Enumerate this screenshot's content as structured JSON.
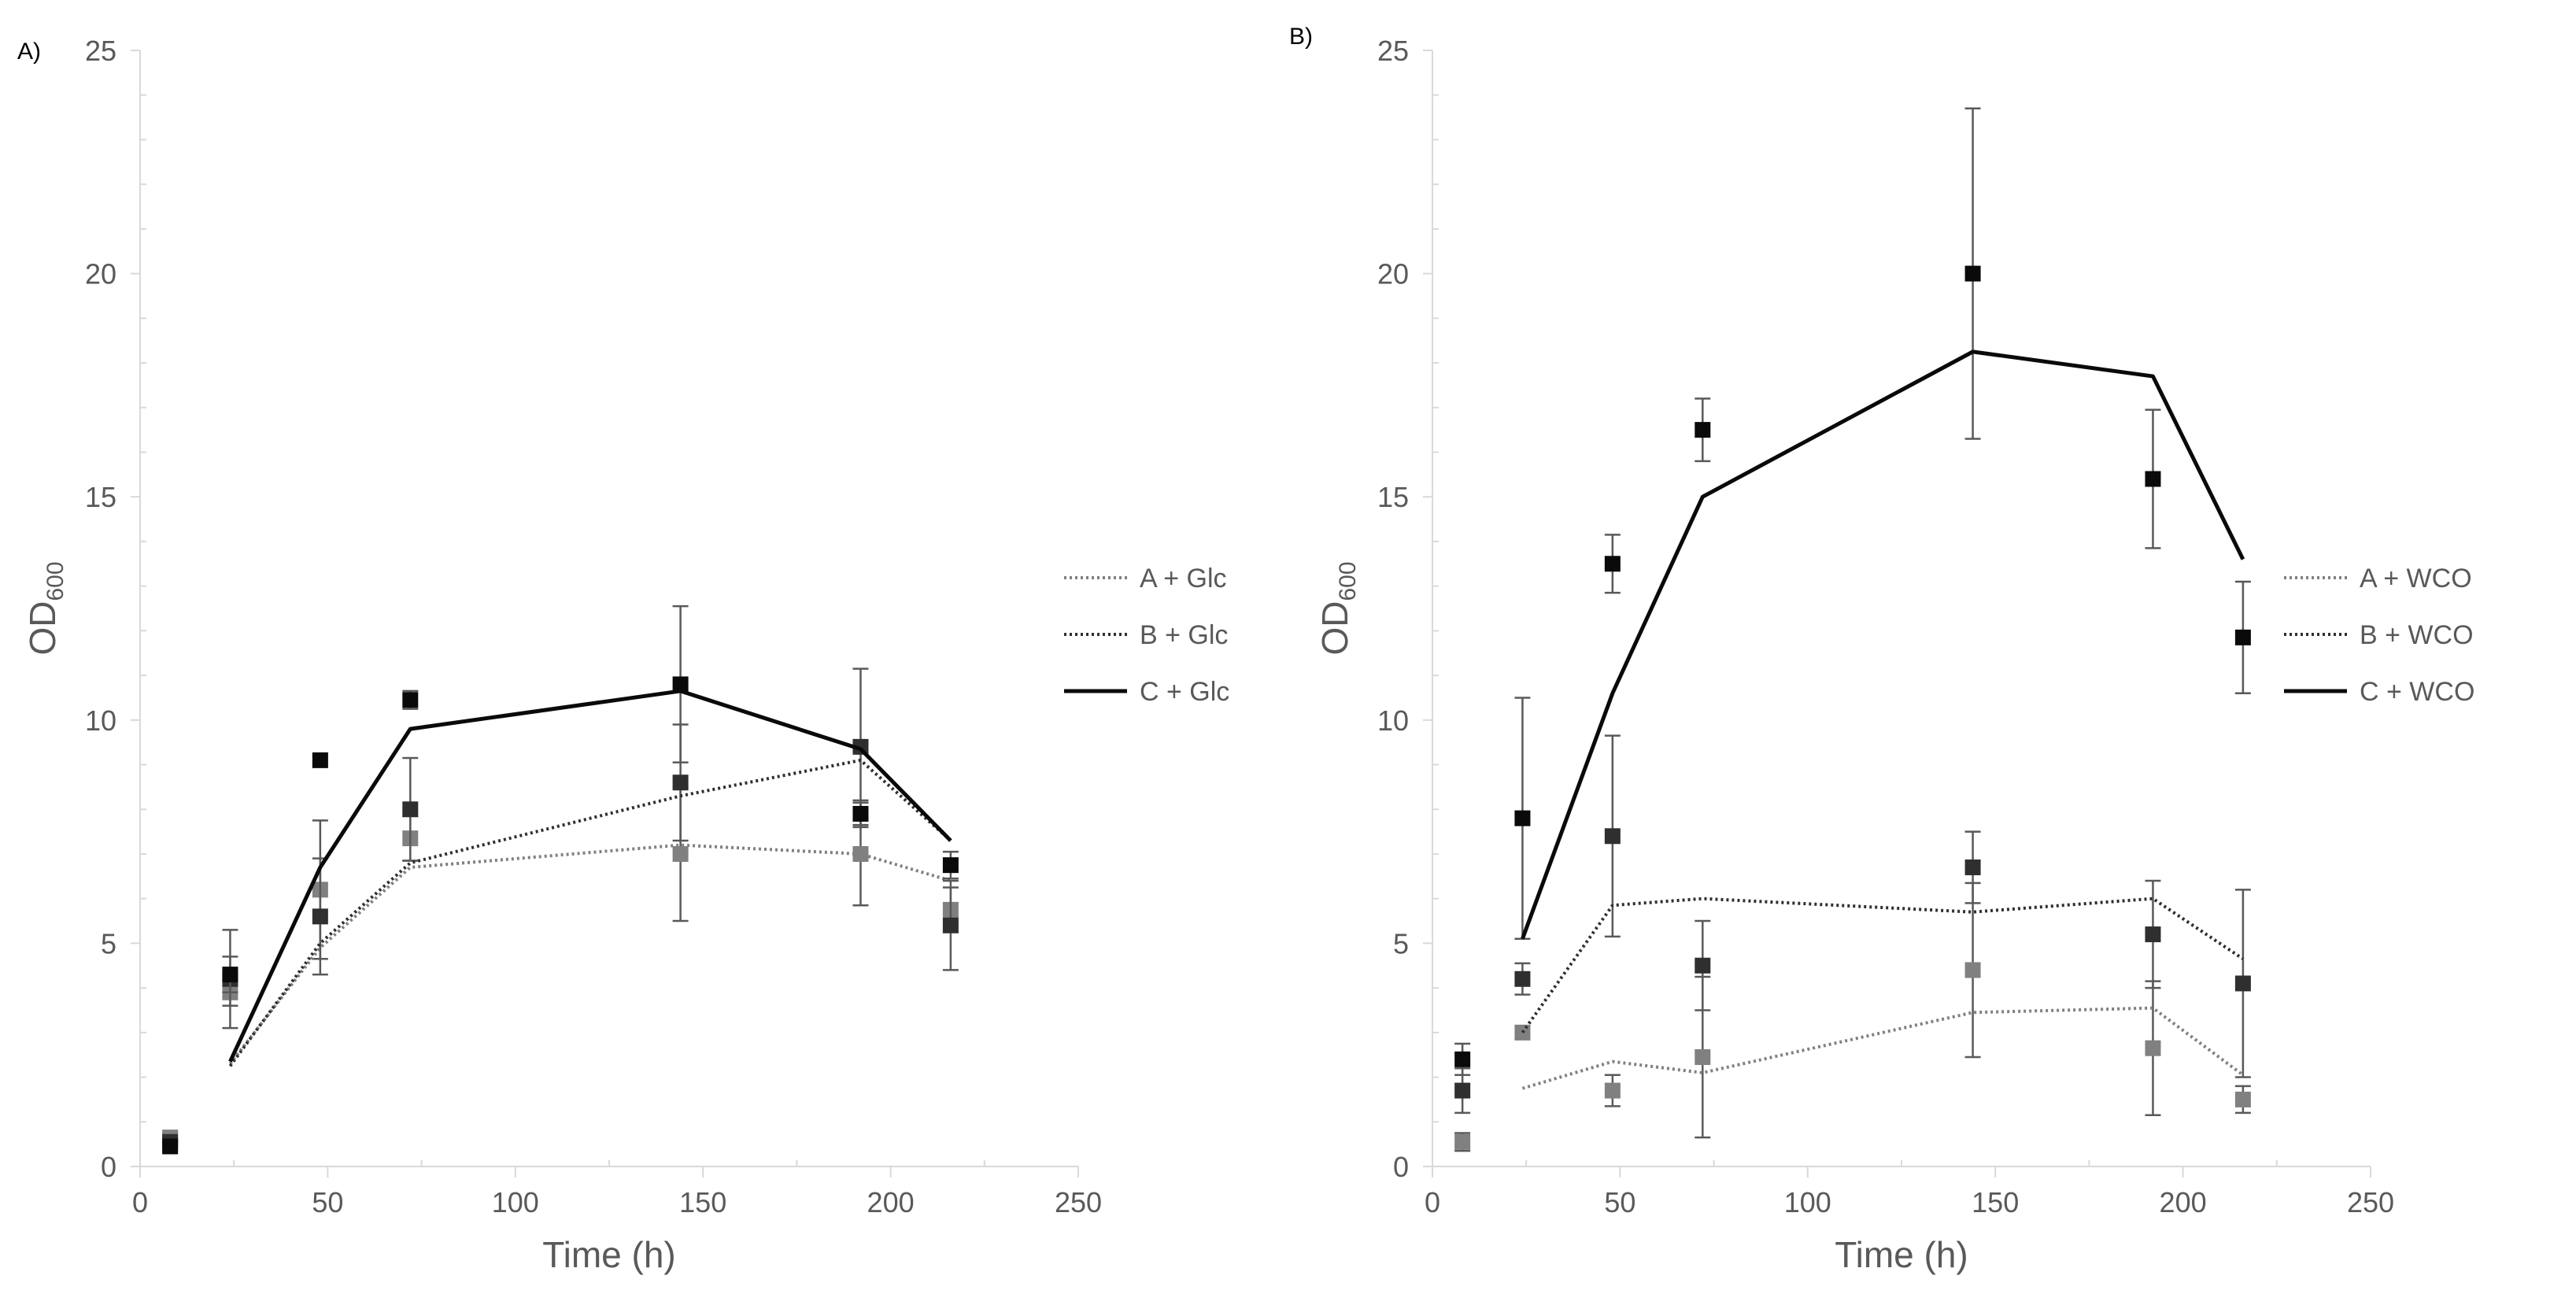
{
  "colors": {
    "axis": "#d9d9d9",
    "grid": "#e7e7e7",
    "text": "#595959",
    "series_a": "#7f7f7f",
    "series_b": "#404040",
    "series_c": "#0d0d0d",
    "error_bar": "#595959"
  },
  "chart_data": [
    {
      "type": "line",
      "panel_label": "A)",
      "title": "",
      "xlabel": "Time (h)",
      "ylabel": "OD",
      "ylabel_sub": "600",
      "xlim": [
        0,
        250
      ],
      "ylim": [
        0,
        25
      ],
      "xticks": [
        0,
        50,
        100,
        150,
        200,
        250
      ],
      "yticks": [
        0,
        5,
        10,
        15,
        20,
        25
      ],
      "xtick_labels": [
        "0",
        "50",
        "100",
        "150",
        "200",
        "250"
      ],
      "ytick_labels": [
        "0",
        "5",
        "10",
        "15",
        "20",
        "25"
      ],
      "legend_position": "right",
      "series": [
        {
          "name": "A + Glc",
          "line_style": "dotted",
          "color": "#808080",
          "line": {
            "x": [
              24,
              48,
              72,
              144,
              192,
              216
            ],
            "y": [
              2.3,
              4.9,
              6.7,
              7.2,
              7.0,
              6.4
            ]
          },
          "points": {
            "x": [
              8,
              24,
              48,
              72,
              144,
              192,
              216
            ],
            "y": [
              0.65,
              3.9,
              6.2,
              7.35,
              7.0,
              7.0,
              5.75
            ],
            "err": [
              0.1,
              0.3,
              1.55,
              0.5,
              1.5,
              1.15,
              0.5
            ]
          }
        },
        {
          "name": "B + Glc",
          "line_style": "dotted",
          "color": "#2f2f2f",
          "line": {
            "x": [
              24,
              48,
              72,
              144,
              192,
              216
            ],
            "y": [
              2.25,
              5.0,
              6.8,
              8.3,
              9.1,
              7.3
            ]
          },
          "points": {
            "x": [
              8,
              24,
              48,
              72,
              144,
              192,
              216
            ],
            "y": [
              0.55,
              4.2,
              5.6,
              8.0,
              8.6,
              9.4,
              5.4
            ],
            "err": [
              0.1,
              1.1,
              1.3,
              1.15,
              1.3,
              1.75,
              1.0
            ]
          }
        },
        {
          "name": "C + Glc",
          "line_style": "solid",
          "color": "#0a0a0a",
          "line": {
            "x": [
              24,
              48,
              72,
              144,
              192,
              216
            ],
            "y": [
              2.35,
              6.7,
              9.8,
              10.65,
              9.35,
              7.3
            ]
          },
          "points": {
            "x": [
              8,
              24,
              48,
              72,
              144,
              192,
              216
            ],
            "y": [
              0.45,
              4.3,
              9.1,
              10.45,
              10.8,
              7.9,
              6.75
            ],
            "err": [
              0.1,
              0.4,
              0.1,
              0.2,
              1.75,
              0.3,
              0.3
            ]
          }
        }
      ]
    },
    {
      "type": "line",
      "panel_label": "B)",
      "title": "",
      "xlabel": "Time (h)",
      "ylabel": "OD",
      "ylabel_sub": "600",
      "xlim": [
        0,
        250
      ],
      "ylim": [
        0,
        25
      ],
      "xticks": [
        0,
        50,
        100,
        150,
        200,
        250
      ],
      "yticks": [
        0,
        5,
        10,
        15,
        20,
        25
      ],
      "xtick_labels": [
        "0",
        "50",
        "100",
        "150",
        "200",
        "250"
      ],
      "ytick_labels": [
        "0",
        "5",
        "10",
        "15",
        "20",
        "25"
      ],
      "legend_position": "right",
      "series": [
        {
          "name": "A + WCO",
          "line_style": "dotted",
          "color": "#808080",
          "line": {
            "x": [
              24,
              48,
              72,
              144,
              192,
              216
            ],
            "y": [
              1.75,
              2.35,
              2.1,
              3.45,
              3.55,
              2.05
            ]
          },
          "points": {
            "x": [
              8,
              24,
              48,
              72,
              144,
              192,
              216
            ],
            "y": [
              0.55,
              3.0,
              1.7,
              2.45,
              4.4,
              2.65,
              1.5
            ],
            "err": [
              0.2,
              0.15,
              0.35,
              1.8,
              1.95,
              1.5,
              0.3
            ]
          }
        },
        {
          "name": "B + WCO",
          "line_style": "dotted",
          "color": "#2f2f2f",
          "line": {
            "x": [
              24,
              48,
              72,
              144,
              192,
              216
            ],
            "y": [
              3.0,
              5.85,
              6.0,
              5.7,
              6.0,
              4.65
            ]
          },
          "points": {
            "x": [
              8,
              24,
              48,
              72,
              144,
              192,
              216
            ],
            "y": [
              1.7,
              4.2,
              7.4,
              4.5,
              6.7,
              5.2,
              4.1
            ],
            "err": [
              0.5,
              0.35,
              2.25,
              1.0,
              0.8,
              1.2,
              2.1
            ]
          }
        },
        {
          "name": "C + WCO",
          "line_style": "solid",
          "color": "#0a0a0a",
          "line": {
            "x": [
              24,
              48,
              72,
              144,
              192,
              216
            ],
            "y": [
              5.1,
              10.6,
              15.0,
              18.25,
              17.7,
              13.6
            ]
          },
          "points": {
            "x": [
              8,
              24,
              48,
              72,
              144,
              192,
              216
            ],
            "y": [
              2.4,
              7.8,
              13.5,
              16.5,
              20.0,
              15.4,
              11.85
            ],
            "err": [
              0.35,
              2.7,
              0.65,
              0.7,
              3.7,
              1.55,
              1.25
            ]
          }
        }
      ]
    }
  ]
}
